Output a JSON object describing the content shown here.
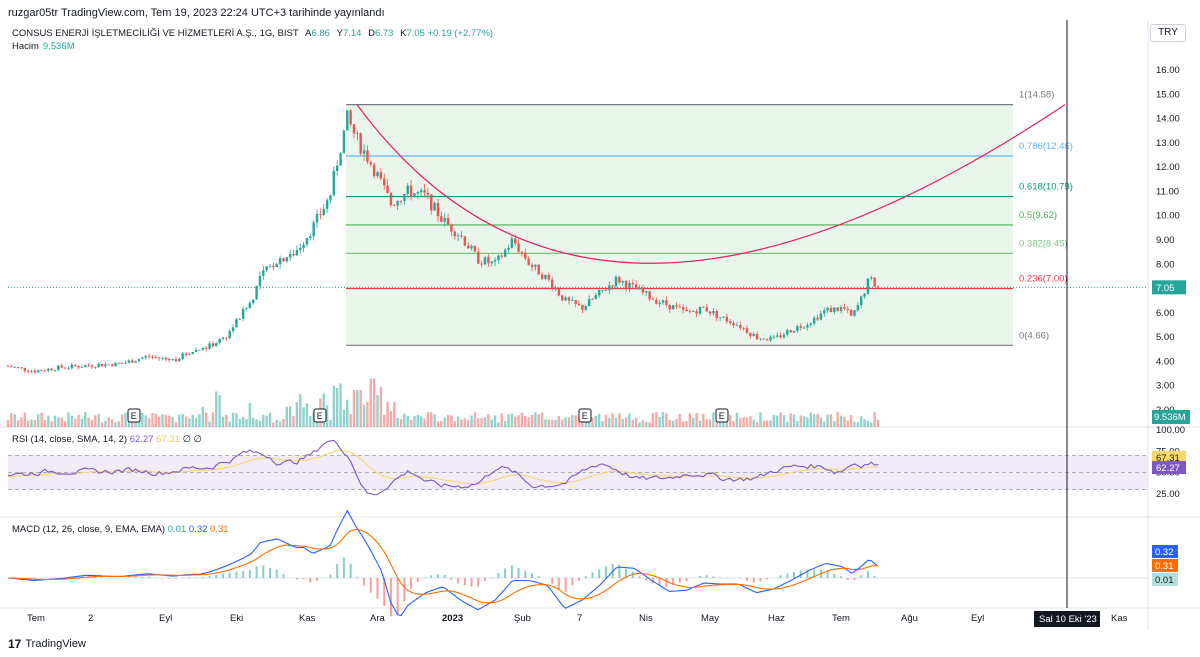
{
  "header": {
    "published": "ruzgar05tr TradingView.com, Tem 19, 2023 22:24 UTC+3 tarihinde yayınlandı",
    "symbol": "CONSUS ENERJİ İŞLETMECİLİĞİ VE HİZMETLERİ A.Ş., 1G, BIST",
    "open_label": "A",
    "open": "6.86",
    "high_label": "Y",
    "high": "7.14",
    "low_label": "D",
    "low": "6.73",
    "close_label": "K",
    "close": "7.05",
    "change": "+0.19 (+2.77%)",
    "volume_label": "Hacim",
    "volume": "9.536M",
    "currency": "TRY"
  },
  "rsi_legend": {
    "label": "RSI (14, close, SMA, 14, 2)",
    "v1": "62.27",
    "v2": "67.31",
    "v3": "∅",
    "v4": "∅"
  },
  "macd_legend": {
    "label": "MACD (12, 26, close, 9, EMA, EMA)",
    "v1": "0.01",
    "v2": "0.32",
    "v3": "0.31"
  },
  "footer": {
    "brand": "TradingView",
    "logo": "17"
  },
  "colors": {
    "up": "#26a69a",
    "down": "#ef5350",
    "rsi": "#7e57c2",
    "rsi_ma": "#f5d76e",
    "macd": "#2962ff",
    "signal": "#ff6d00",
    "fib_fill": "#e8f5e9",
    "arc": "#e91e63"
  },
  "chart_data": {
    "type": "candlestick",
    "price_axis": {
      "ticks": [
        "16.00",
        "15.00",
        "14.00",
        "13.00",
        "12.00",
        "11.00",
        "10.00",
        "9.00",
        "8.00",
        "7.00",
        "6.00",
        "5.00",
        "4.00",
        "3.00",
        "2.00"
      ],
      "min": 1.5,
      "max": 16.5
    },
    "last_price_label": "7.05",
    "volume_label": "9.536M",
    "time_axis": [
      "Tem",
      "2",
      "Eyl",
      "Eki",
      "Kas",
      "Ara",
      "2023",
      "Şub",
      "7",
      "Nis",
      "May",
      "Haz",
      "Tem",
      "Ağu",
      "Eyl",
      "Kas"
    ],
    "crosshair_date": "Sal 10 Eki '23",
    "earnings_marker": "E",
    "fib_levels": [
      {
        "ratio": "1",
        "price": 14.58,
        "label": "1(14.58)",
        "color": "#787b86"
      },
      {
        "ratio": "0.786",
        "price": 12.46,
        "label": "0.786(12.46)",
        "color": "#64b5f6"
      },
      {
        "ratio": "0.618",
        "price": 10.79,
        "label": "0.618(10.79)",
        "color": "#089981"
      },
      {
        "ratio": "0.5",
        "price": 9.62,
        "label": "0.5(9.62)",
        "color": "#4caf50"
      },
      {
        "ratio": "0.382",
        "price": 8.45,
        "label": "0.382(8.45)",
        "color": "#81c784"
      },
      {
        "ratio": "0.236",
        "price": 7.0,
        "label": "0.236(7.00)",
        "color": "#f23645"
      },
      {
        "ratio": "0",
        "price": 4.66,
        "label": "0(4.66)",
        "color": "#787b86"
      }
    ],
    "price_path": [
      [
        0,
        3.8
      ],
      [
        0.03,
        3.6
      ],
      [
        0.06,
        3.75
      ],
      [
        0.1,
        3.85
      ],
      [
        0.13,
        3.9
      ],
      [
        0.16,
        4.2
      ],
      [
        0.19,
        4.05
      ],
      [
        0.21,
        4.4
      ],
      [
        0.23,
        4.6
      ],
      [
        0.25,
        5.0
      ],
      [
        0.28,
        6.5
      ],
      [
        0.29,
        7.5
      ],
      [
        0.31,
        8.2
      ],
      [
        0.33,
        8.5
      ],
      [
        0.35,
        9.5
      ],
      [
        0.37,
        10.8
      ],
      [
        0.38,
        12.5
      ],
      [
        0.39,
        14.0
      ],
      [
        0.4,
        13.2
      ],
      [
        0.42,
        12.0
      ],
      [
        0.44,
        10.5
      ],
      [
        0.46,
        11.0
      ],
      [
        0.48,
        10.8
      ],
      [
        0.5,
        9.8
      ],
      [
        0.52,
        9.2
      ],
      [
        0.54,
        8.2
      ],
      [
        0.56,
        8.0
      ],
      [
        0.58,
        9.0
      ],
      [
        0.6,
        8.0
      ],
      [
        0.62,
        7.4
      ],
      [
        0.64,
        6.5
      ],
      [
        0.66,
        6.2
      ],
      [
        0.68,
        6.8
      ],
      [
        0.7,
        7.4
      ],
      [
        0.72,
        7.0
      ],
      [
        0.74,
        6.6
      ],
      [
        0.76,
        6.3
      ],
      [
        0.78,
        6.0
      ],
      [
        0.8,
        6.2
      ],
      [
        0.82,
        5.8
      ],
      [
        0.84,
        5.5
      ],
      [
        0.86,
        5.0
      ],
      [
        0.88,
        4.9
      ],
      [
        0.9,
        5.3
      ],
      [
        0.92,
        5.6
      ],
      [
        0.94,
        6.1
      ],
      [
        0.96,
        6.2
      ],
      [
        0.97,
        5.8
      ],
      [
        0.98,
        6.5
      ],
      [
        0.99,
        7.4
      ],
      [
        1.0,
        7.05
      ]
    ],
    "rsi_axis": [
      "100.00",
      "75.00",
      "50.00",
      "25.00"
    ],
    "rsi_values": {
      "rsi": "62.27",
      "ma": "67.31"
    },
    "macd_values": {
      "hist": "0.01",
      "macd": "0.32",
      "signal": "0.31"
    }
  }
}
